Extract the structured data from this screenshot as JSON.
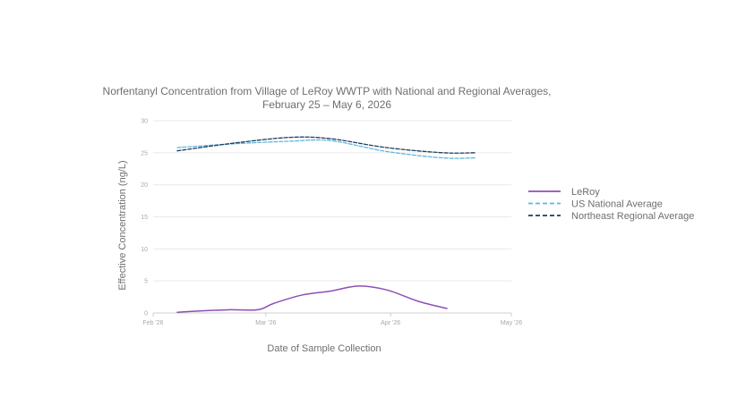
{
  "chart_data": {
    "type": "line",
    "title_lines": [
      "Norfentanyl Concentration from Village of LeRoy WWTP with National and Regional Averages,",
      "February 25 – May 6, 2026"
    ],
    "xlabel": "Date of Sample Collection",
    "ylabel": "Effective Concentration (ng/L)",
    "ylim": [
      0,
      30
    ],
    "yticks": [
      0,
      5,
      10,
      15,
      20,
      25,
      30
    ],
    "xlim": [
      "2026-02-01",
      "2026-05-01"
    ],
    "xticks": [
      {
        "date": "2026-02-01",
        "label": "Feb '26"
      },
      {
        "date": "2026-03-01",
        "label": "Mar '26"
      },
      {
        "date": "2026-04-01",
        "label": "Apr '26"
      },
      {
        "date": "2026-05-01",
        "label": "May '26"
      }
    ],
    "grid": true,
    "legend_position": "right",
    "series": [
      {
        "name": "LeRoy",
        "color": "#8e4fb5",
        "dash": "solid",
        "points": [
          {
            "x": "2026-02-07",
            "y": 0.1
          },
          {
            "x": "2026-02-12",
            "y": 0.3
          },
          {
            "x": "2026-02-20",
            "y": 0.5
          },
          {
            "x": "2026-02-27",
            "y": 0.5
          },
          {
            "x": "2026-03-03",
            "y": 1.5
          },
          {
            "x": "2026-03-10",
            "y": 2.8
          },
          {
            "x": "2026-03-17",
            "y": 3.4
          },
          {
            "x": "2026-03-24",
            "y": 4.2
          },
          {
            "x": "2026-03-31",
            "y": 3.6
          },
          {
            "x": "2026-04-08",
            "y": 1.8
          },
          {
            "x": "2026-04-15",
            "y": 0.7
          }
        ]
      },
      {
        "name": "US National Average",
        "color": "#5db8dc",
        "dash": "dashed",
        "points": [
          {
            "x": "2026-02-07",
            "y": 25.8
          },
          {
            "x": "2026-02-21",
            "y": 26.4
          },
          {
            "x": "2026-03-07",
            "y": 26.8
          },
          {
            "x": "2026-03-17",
            "y": 26.9
          },
          {
            "x": "2026-03-31",
            "y": 25.2
          },
          {
            "x": "2026-04-14",
            "y": 24.2
          },
          {
            "x": "2026-04-22",
            "y": 24.2
          }
        ]
      },
      {
        "name": "Northeast Regional Average",
        "color": "#1f3c5e",
        "dash": "dashed",
        "points": [
          {
            "x": "2026-02-07",
            "y": 25.3
          },
          {
            "x": "2026-02-21",
            "y": 26.5
          },
          {
            "x": "2026-03-07",
            "y": 27.4
          },
          {
            "x": "2026-03-17",
            "y": 27.2
          },
          {
            "x": "2026-03-31",
            "y": 25.8
          },
          {
            "x": "2026-04-14",
            "y": 25.0
          },
          {
            "x": "2026-04-22",
            "y": 25.0
          }
        ]
      }
    ]
  }
}
